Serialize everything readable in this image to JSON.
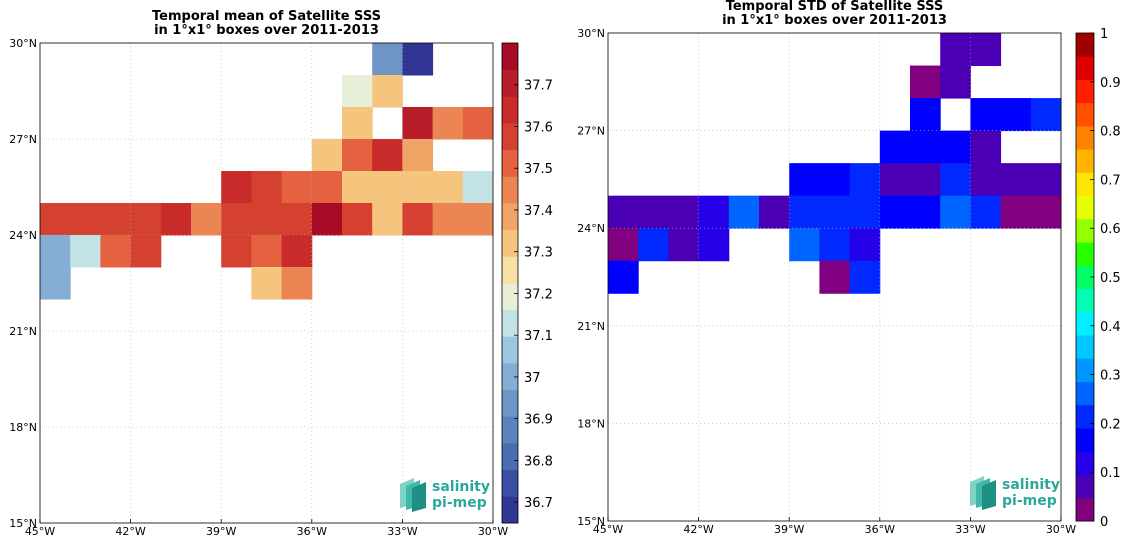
{
  "chart_data": [
    {
      "type": "heatmap",
      "title": "Temporal mean of Satellite SSS\nin 1°x1° boxes over 2011-2013",
      "xlim": [
        -45,
        -30
      ],
      "ylim": [
        15,
        30
      ],
      "xticks": [
        "45°W",
        "42°W",
        "39°W",
        "36°W",
        "33°W",
        "30°W"
      ],
      "yticks": [
        "15°N",
        "18°N",
        "21°N",
        "24°N",
        "27°N",
        "30°N"
      ],
      "grid": true,
      "colorbar": {
        "min": 36.65,
        "max": 37.8,
        "ticks": [
          "36.7",
          "36.8",
          "36.9",
          "37",
          "37.1",
          "37.2",
          "37.3",
          "37.4",
          "37.5",
          "37.6",
          "37.7"
        ],
        "colors": [
          "#313695",
          "#3a4ea3",
          "#4a6db0",
          "#5a82bc",
          "#6d96c7",
          "#84aed4",
          "#9dc6e1",
          "#c3e2e5",
          "#e8efd9",
          "#f6e0a4",
          "#f5c57d",
          "#f0a566",
          "#eb8553",
          "#e4623f",
          "#d44130",
          "#c92a2a",
          "#b81d2a",
          "#a80b26"
        ]
      },
      "cells": [
        {
          "lon": -34,
          "lat": 29,
          "value": 36.95
        },
        {
          "lon": -33,
          "lat": 29,
          "value": 36.7
        },
        {
          "lon": -35,
          "lat": 28,
          "value": 37.2
        },
        {
          "lon": -34,
          "lat": 28,
          "value": 37.3
        },
        {
          "lon": -35,
          "lat": 27,
          "value": 37.3
        },
        {
          "lon": -33,
          "lat": 27,
          "value": 37.7
        },
        {
          "lon": -32,
          "lat": 27,
          "value": 37.45
        },
        {
          "lon": -31,
          "lat": 27,
          "value": 37.5
        },
        {
          "lon": -36,
          "lat": 26,
          "value": 37.35
        },
        {
          "lon": -35,
          "lat": 26,
          "value": 37.5
        },
        {
          "lon": -34,
          "lat": 26,
          "value": 37.65
        },
        {
          "lon": -33,
          "lat": 26,
          "value": 37.4
        },
        {
          "lon": -39,
          "lat": 25,
          "value": 37.65
        },
        {
          "lon": -38,
          "lat": 25,
          "value": 37.55
        },
        {
          "lon": -37,
          "lat": 25,
          "value": 37.5
        },
        {
          "lon": -36,
          "lat": 25,
          "value": 37.5
        },
        {
          "lon": -35,
          "lat": 25,
          "value": 37.35
        },
        {
          "lon": -34,
          "lat": 25,
          "value": 37.3
        },
        {
          "lon": -33,
          "lat": 25,
          "value": 37.35
        },
        {
          "lon": -32,
          "lat": 25,
          "value": 37.3
        },
        {
          "lon": -31,
          "lat": 25,
          "value": 37.1
        },
        {
          "lon": -45,
          "lat": 24,
          "value": 37.55
        },
        {
          "lon": -44,
          "lat": 24,
          "value": 37.55
        },
        {
          "lon": -43,
          "lat": 24,
          "value": 37.6
        },
        {
          "lon": -42,
          "lat": 24,
          "value": 37.6
        },
        {
          "lon": -41,
          "lat": 24,
          "value": 37.65
        },
        {
          "lon": -40,
          "lat": 24,
          "value": 37.45
        },
        {
          "lon": -39,
          "lat": 24,
          "value": 37.6
        },
        {
          "lon": -38,
          "lat": 24,
          "value": 37.55
        },
        {
          "lon": -37,
          "lat": 24,
          "value": 37.6
        },
        {
          "lon": -36,
          "lat": 24,
          "value": 37.75
        },
        {
          "lon": -35,
          "lat": 24,
          "value": 37.55
        },
        {
          "lon": -34,
          "lat": 24,
          "value": 37.35
        },
        {
          "lon": -33,
          "lat": 24,
          "value": 37.55
        },
        {
          "lon": -32,
          "lat": 24,
          "value": 37.45
        },
        {
          "lon": -31,
          "lat": 24,
          "value": 37.45
        },
        {
          "lon": -45,
          "lat": 23,
          "value": 37.0
        },
        {
          "lon": -44,
          "lat": 23,
          "value": 37.1
        },
        {
          "lon": -43,
          "lat": 23,
          "value": 37.5
        },
        {
          "lon": -42,
          "lat": 23,
          "value": 37.6
        },
        {
          "lon": -39,
          "lat": 23,
          "value": 37.6
        },
        {
          "lon": -38,
          "lat": 23,
          "value": 37.5
        },
        {
          "lon": -37,
          "lat": 23,
          "value": 37.65
        },
        {
          "lon": -45,
          "lat": 22,
          "value": 37.0
        },
        {
          "lon": -38,
          "lat": 22,
          "value": 37.3
        },
        {
          "lon": -37,
          "lat": 22,
          "value": 37.45
        }
      ]
    },
    {
      "type": "heatmap",
      "title": "Temporal STD of Satellite SSS\nin 1°x1° boxes over 2011-2013",
      "xlim": [
        -45,
        -30
      ],
      "ylim": [
        15,
        30
      ],
      "xticks": [
        "45°W",
        "42°W",
        "39°W",
        "36°W",
        "33°W",
        "30°W"
      ],
      "yticks": [
        "15°N",
        "18°N",
        "21°N",
        "24°N",
        "27°N",
        "30°N"
      ],
      "grid": true,
      "colorbar": {
        "min": 0,
        "max": 1,
        "ticks": [
          "0",
          "0.1",
          "0.2",
          "0.3",
          "0.4",
          "0.5",
          "0.6",
          "0.7",
          "0.8",
          "0.9",
          "1"
        ],
        "colors": [
          "#800080",
          "#4b00b5",
          "#2500e8",
          "#0000ff",
          "#0028ff",
          "#0064ff",
          "#0096ff",
          "#00c8ff",
          "#00f0ff",
          "#00ffb4",
          "#00ff64",
          "#28ff00",
          "#96ff00",
          "#e6ff00",
          "#ffe600",
          "#ffb400",
          "#ff8200",
          "#ff5000",
          "#ff1e00",
          "#dc0000",
          "#a00000"
        ]
      },
      "cells": [
        {
          "lon": -34,
          "lat": 29,
          "value": 0.08
        },
        {
          "lon": -33,
          "lat": 29,
          "value": 0.08
        },
        {
          "lon": -35,
          "lat": 28,
          "value": 0.02
        },
        {
          "lon": -34,
          "lat": 28,
          "value": 0.08
        },
        {
          "lon": -35,
          "lat": 27,
          "value": 0.15
        },
        {
          "lon": -33,
          "lat": 27,
          "value": 0.15
        },
        {
          "lon": -32,
          "lat": 27,
          "value": 0.15
        },
        {
          "lon": -31,
          "lat": 27,
          "value": 0.2
        },
        {
          "lon": -36,
          "lat": 26,
          "value": 0.15
        },
        {
          "lon": -35,
          "lat": 26,
          "value": 0.15
        },
        {
          "lon": -34,
          "lat": 26,
          "value": 0.15
        },
        {
          "lon": -33,
          "lat": 26,
          "value": 0.08
        },
        {
          "lon": -39,
          "lat": 25,
          "value": 0.15
        },
        {
          "lon": -38,
          "lat": 25,
          "value": 0.15
        },
        {
          "lon": -37,
          "lat": 25,
          "value": 0.2
        },
        {
          "lon": -36,
          "lat": 25,
          "value": 0.08
        },
        {
          "lon": -35,
          "lat": 25,
          "value": 0.08
        },
        {
          "lon": -34,
          "lat": 25,
          "value": 0.2
        },
        {
          "lon": -33,
          "lat": 25,
          "value": 0.08
        },
        {
          "lon": -32,
          "lat": 25,
          "value": 0.08
        },
        {
          "lon": -31,
          "lat": 25,
          "value": 0.08
        },
        {
          "lon": -45,
          "lat": 24,
          "value": 0.08
        },
        {
          "lon": -44,
          "lat": 24,
          "value": 0.08
        },
        {
          "lon": -43,
          "lat": 24,
          "value": 0.08
        },
        {
          "lon": -42,
          "lat": 24,
          "value": 0.12
        },
        {
          "lon": -41,
          "lat": 24,
          "value": 0.28
        },
        {
          "lon": -40,
          "lat": 24,
          "value": 0.08
        },
        {
          "lon": -39,
          "lat": 24,
          "value": 0.2
        },
        {
          "lon": -38,
          "lat": 24,
          "value": 0.2
        },
        {
          "lon": -37,
          "lat": 24,
          "value": 0.2
        },
        {
          "lon": -36,
          "lat": 24,
          "value": 0.15
        },
        {
          "lon": -35,
          "lat": 24,
          "value": 0.15
        },
        {
          "lon": -34,
          "lat": 24,
          "value": 0.28
        },
        {
          "lon": -33,
          "lat": 24,
          "value": 0.2
        },
        {
          "lon": -32,
          "lat": 24,
          "value": 0.03
        },
        {
          "lon": -31,
          "lat": 24,
          "value": 0.03
        },
        {
          "lon": -45,
          "lat": 23,
          "value": 0.02
        },
        {
          "lon": -44,
          "lat": 23,
          "value": 0.2
        },
        {
          "lon": -43,
          "lat": 23,
          "value": 0.08
        },
        {
          "lon": -42,
          "lat": 23,
          "value": 0.12
        },
        {
          "lon": -39,
          "lat": 23,
          "value": 0.25
        },
        {
          "lon": -38,
          "lat": 23,
          "value": 0.2
        },
        {
          "lon": -37,
          "lat": 23,
          "value": 0.12
        },
        {
          "lon": -45,
          "lat": 22,
          "value": 0.15
        },
        {
          "lon": -38,
          "lat": 22,
          "value": 0.02
        },
        {
          "lon": -37,
          "lat": 22,
          "value": 0.2
        }
      ]
    }
  ],
  "logo": {
    "line1": "salinity",
    "line2": "pi-mep",
    "color": "#2aa89a"
  }
}
